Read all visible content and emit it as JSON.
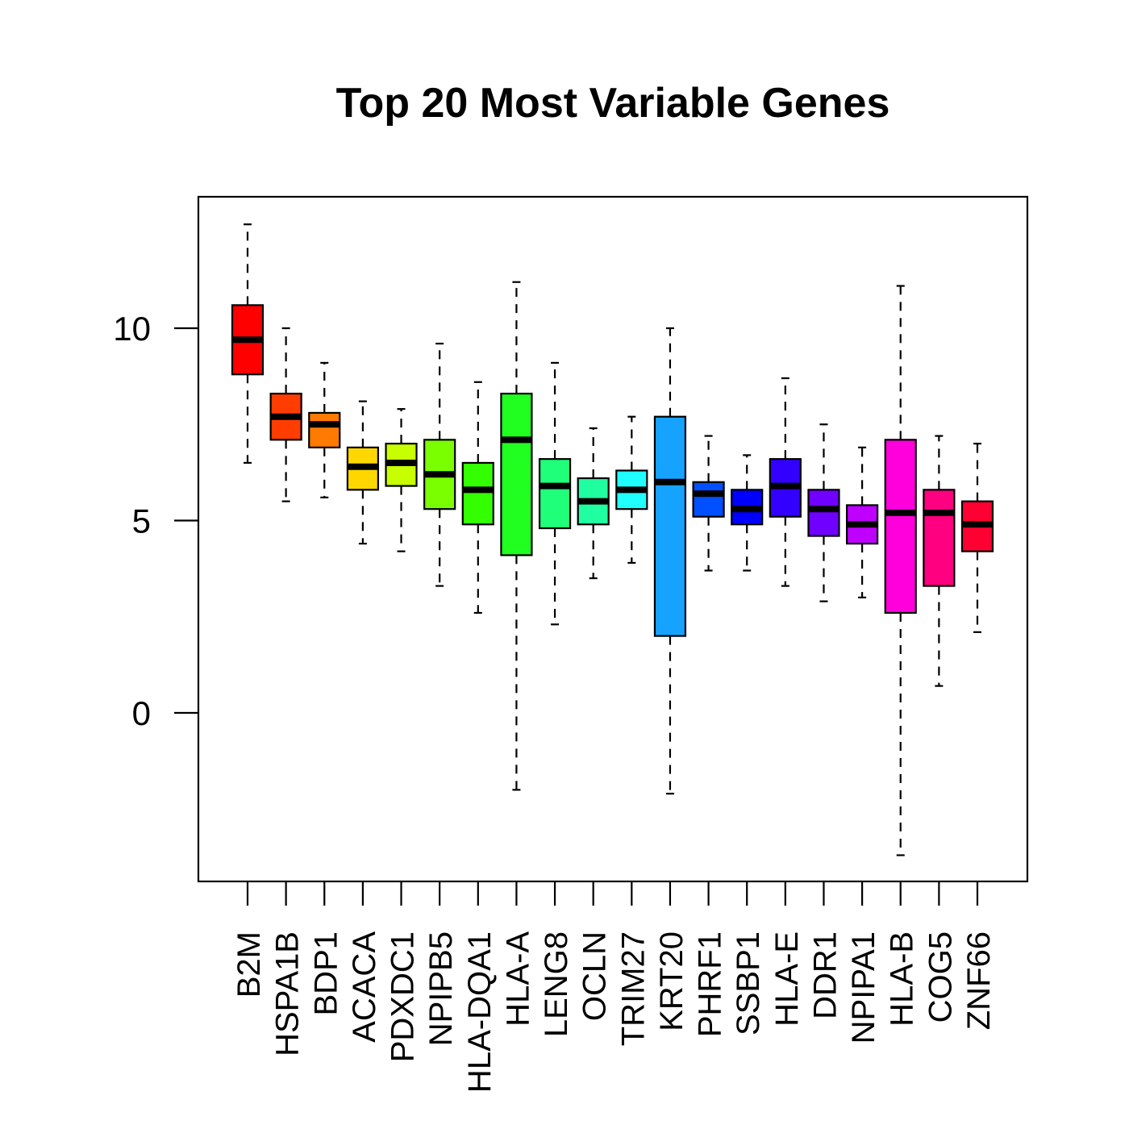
{
  "chart_data": {
    "type": "boxplot",
    "title": "Top 20 Most Variable Genes",
    "xlabel": "",
    "ylabel": "",
    "ylim": [
      -4.4,
      13.4
    ],
    "yticks": [
      0,
      5,
      10
    ],
    "categories": [
      "B2M",
      "HSPA1B",
      "BDP1",
      "ACACA",
      "PDXDC1",
      "NPIPB5",
      "HLA-DQA1",
      "HLA-A",
      "LENG8",
      "OCLN",
      "TRIM27",
      "KRT20",
      "PHRF1",
      "SSBP1",
      "HLA-E",
      "DDR1",
      "NPIPA1",
      "HLA-B",
      "COG5",
      "ZNF66"
    ],
    "colors": [
      "#ff0000",
      "#ff3d00",
      "#ff7a00",
      "#ffd700",
      "#c7ff00",
      "#7aff00",
      "#33ff00",
      "#20ff20",
      "#20ff7a",
      "#20ffa0",
      "#20ffff",
      "#16a2ff",
      "#0050ff",
      "#0000ff",
      "#3300ff",
      "#7000ff",
      "#c000ff",
      "#ff00dd",
      "#ff0080",
      "#ff0033"
    ],
    "boxes": [
      {
        "whisker_low": 6.5,
        "q1": 8.8,
        "median": 9.7,
        "q3": 10.6,
        "whisker_high": 12.7
      },
      {
        "whisker_low": 5.5,
        "q1": 7.1,
        "median": 7.7,
        "q3": 8.3,
        "whisker_high": 10.0
      },
      {
        "whisker_low": 5.6,
        "q1": 6.9,
        "median": 7.5,
        "q3": 7.8,
        "whisker_high": 9.1
      },
      {
        "whisker_low": 4.4,
        "q1": 5.8,
        "median": 6.4,
        "q3": 6.9,
        "whisker_high": 8.1
      },
      {
        "whisker_low": 4.2,
        "q1": 5.9,
        "median": 6.5,
        "q3": 7.0,
        "whisker_high": 7.9
      },
      {
        "whisker_low": 3.3,
        "q1": 5.3,
        "median": 6.2,
        "q3": 7.1,
        "whisker_high": 9.6
      },
      {
        "whisker_low": 2.6,
        "q1": 4.9,
        "median": 5.8,
        "q3": 6.5,
        "whisker_high": 8.6
      },
      {
        "whisker_low": -2.0,
        "q1": 4.1,
        "median": 7.1,
        "q3": 8.3,
        "whisker_high": 11.2
      },
      {
        "whisker_low": 2.3,
        "q1": 4.8,
        "median": 5.9,
        "q3": 6.6,
        "whisker_high": 9.1
      },
      {
        "whisker_low": 3.5,
        "q1": 4.9,
        "median": 5.5,
        "q3": 6.1,
        "whisker_high": 7.4
      },
      {
        "whisker_low": 3.9,
        "q1": 5.3,
        "median": 5.8,
        "q3": 6.3,
        "whisker_high": 7.7
      },
      {
        "whisker_low": -2.1,
        "q1": 2.0,
        "median": 6.0,
        "q3": 7.7,
        "whisker_high": 10.0
      },
      {
        "whisker_low": 3.7,
        "q1": 5.1,
        "median": 5.7,
        "q3": 6.0,
        "whisker_high": 7.2
      },
      {
        "whisker_low": 3.7,
        "q1": 4.9,
        "median": 5.3,
        "q3": 5.8,
        "whisker_high": 6.7
      },
      {
        "whisker_low": 3.3,
        "q1": 5.1,
        "median": 5.9,
        "q3": 6.6,
        "whisker_high": 8.7
      },
      {
        "whisker_low": 2.9,
        "q1": 4.6,
        "median": 5.3,
        "q3": 5.8,
        "whisker_high": 7.5
      },
      {
        "whisker_low": 3.0,
        "q1": 4.4,
        "median": 4.9,
        "q3": 5.4,
        "whisker_high": 6.9
      },
      {
        "whisker_low": -3.7,
        "q1": 2.6,
        "median": 5.2,
        "q3": 7.1,
        "whisker_high": 11.1
      },
      {
        "whisker_low": 0.7,
        "q1": 3.3,
        "median": 5.2,
        "q3": 5.8,
        "whisker_high": 7.2
      },
      {
        "whisker_low": 2.1,
        "q1": 4.2,
        "median": 4.9,
        "q3": 5.5,
        "whisker_high": 7.0
      }
    ],
    "grid": false,
    "legend": "none"
  }
}
